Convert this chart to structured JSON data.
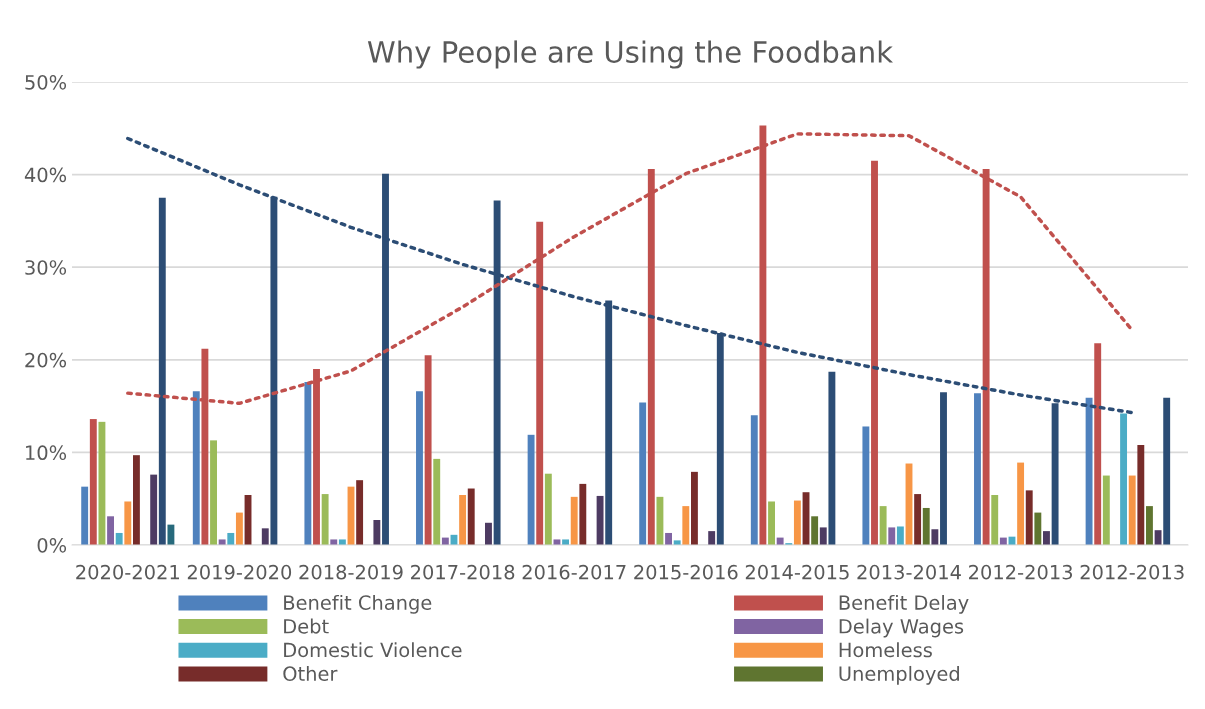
{
  "chart_data": {
    "type": "bar",
    "title": "Why People are Using the Foodbank",
    "categories": [
      "2020-2021",
      "2019-2020",
      "2018-2019",
      "2017-2018",
      "2016-2017",
      "2015-2016",
      "2014-2015",
      "2013-2014",
      "2012-2013",
      "2012-2013"
    ],
    "series": [
      {
        "name": "Benefit Change",
        "color": "#4f81bd",
        "values": [
          6.3,
          16.6,
          17.6,
          16.6,
          11.9,
          15.4,
          14.0,
          12.8,
          16.4,
          15.9
        ]
      },
      {
        "name": "Benefit Delay",
        "color": "#c0504d",
        "values": [
          13.6,
          21.2,
          19.0,
          20.5,
          34.9,
          40.6,
          45.3,
          41.5,
          40.6,
          21.8
        ]
      },
      {
        "name": "Debt",
        "color": "#9bbb59",
        "values": [
          13.3,
          11.3,
          5.5,
          9.3,
          7.7,
          5.2,
          4.7,
          4.2,
          5.4,
          7.5
        ]
      },
      {
        "name": "Delay Wages",
        "color": "#8064a2",
        "values": [
          3.1,
          0.6,
          0.6,
          0.8,
          0.6,
          1.3,
          0.8,
          1.9,
          0.8,
          null
        ]
      },
      {
        "name": "Domestic Violence",
        "color": "#4bacc6",
        "values": [
          1.3,
          1.3,
          0.6,
          1.1,
          0.6,
          0.5,
          0.2,
          2.0,
          0.9,
          14.2
        ]
      },
      {
        "name": "Homeless",
        "color": "#f79646",
        "values": [
          4.7,
          3.5,
          6.3,
          5.4,
          5.2,
          4.2,
          4.8,
          8.8,
          8.9,
          7.5
        ]
      },
      {
        "name": "Other",
        "color": "#772c2a",
        "values": [
          9.7,
          5.4,
          7.0,
          6.1,
          6.6,
          7.9,
          5.7,
          5.5,
          5.9,
          10.8
        ]
      },
      {
        "name": "Unemployed",
        "color": "#5f7530",
        "values": [
          null,
          null,
          null,
          null,
          null,
          null,
          3.1,
          4.0,
          3.5,
          4.2
        ]
      },
      {
        "color": "#4d3b62",
        "values": [
          7.6,
          1.8,
          2.7,
          2.4,
          5.3,
          1.5,
          1.9,
          1.7,
          1.5,
          1.6
        ]
      },
      {
        "color": "#2c4d75",
        "values": [
          37.5,
          37.6,
          40.1,
          37.2,
          26.4,
          22.9,
          18.7,
          16.5,
          15.3,
          15.9
        ]
      },
      {
        "color": "#276a7c",
        "values": [
          2.2,
          null,
          null,
          null,
          null,
          null,
          null,
          null,
          null,
          null
        ]
      },
      {
        "type": "line",
        "color": "#2c4d75",
        "line_style": "dotted",
        "values": [
          43.9,
          38.9,
          34.3,
          30.3,
          26.8,
          23.7,
          20.8,
          18.4,
          16.2,
          14.3
        ]
      },
      {
        "type": "line",
        "color": "#c0504d",
        "line_style": "dotted",
        "values": [
          16.4,
          15.3,
          18.8,
          25.7,
          33.3,
          40.1,
          44.4,
          44.2,
          37.6,
          23.2
        ]
      }
    ],
    "ylim": [
      0,
      50
    ],
    "yticks": [
      {
        "value": 0,
        "label": "0%"
      },
      {
        "value": 10,
        "label": "10%"
      },
      {
        "value": 20,
        "label": "20%"
      },
      {
        "value": 30,
        "label": "30%"
      },
      {
        "value": 40,
        "label": "40%"
      },
      {
        "value": 50,
        "label": "50%"
      }
    ],
    "grid": "y",
    "legend": "bottom"
  }
}
